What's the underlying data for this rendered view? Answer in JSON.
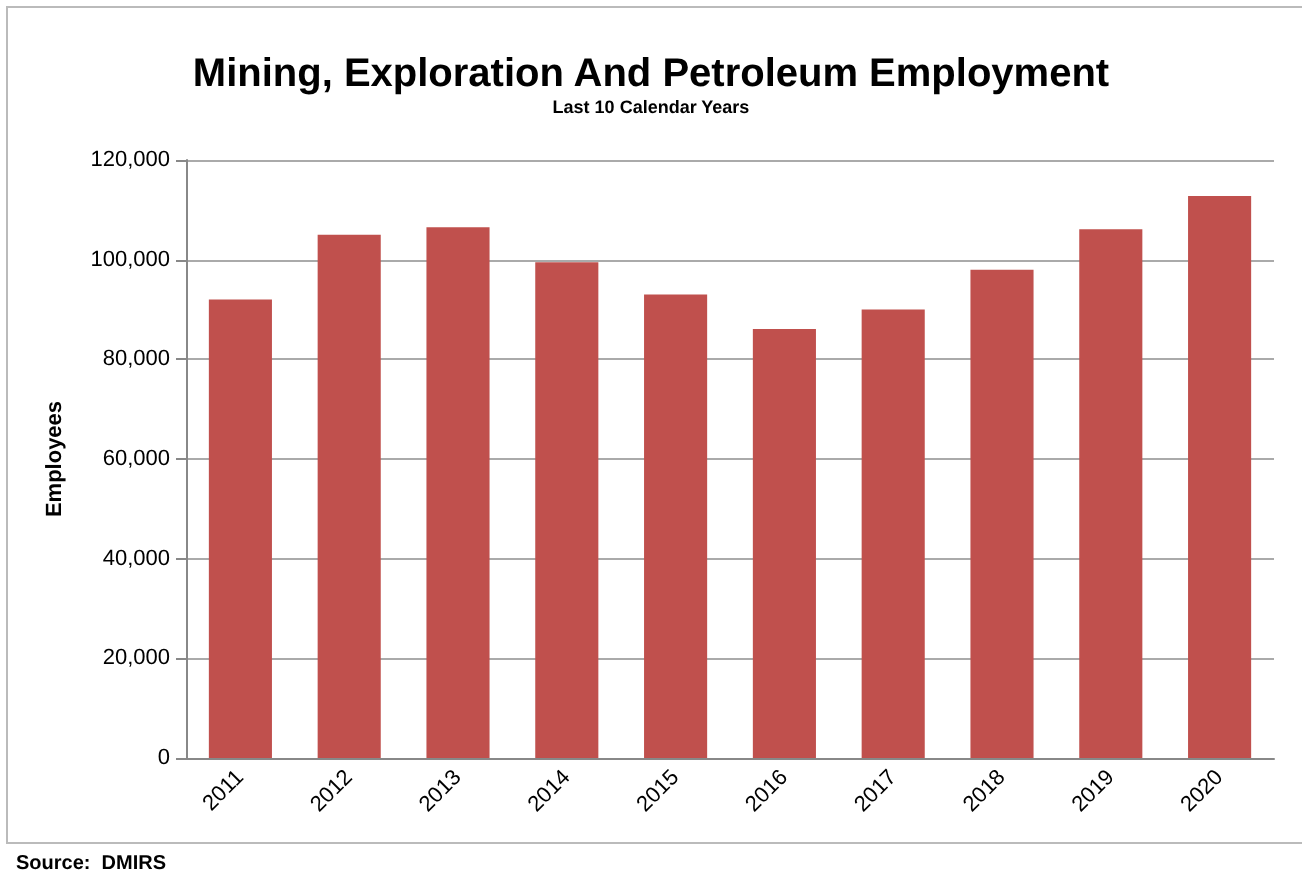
{
  "chart_data": {
    "type": "bar",
    "title": "Mining, Exploration And Petroleum Employment",
    "subtitle": "Last 10 Calendar Years",
    "ylabel": "Employees",
    "categories": [
      "2011",
      "2012",
      "2013",
      "2014",
      "2015",
      "2016",
      "2017",
      "2018",
      "2019",
      "2020"
    ],
    "values": [
      92000,
      105000,
      106500,
      99500,
      93000,
      86100,
      90000,
      98000,
      106100,
      112800
    ],
    "color": "#c0504d",
    "ylim": [
      0,
      120000
    ],
    "yticks": [
      0,
      {
        "value": 20000,
        "label": "20,000"
      },
      {
        "value": 40000,
        "label": "40,000"
      },
      {
        "value": 60000,
        "label": "60,000"
      },
      {
        "value": 80000,
        "label": "80,000"
      },
      {
        "value": 100000,
        "label": "100,000"
      },
      {
        "value": 120000,
        "label": "120,000"
      }
    ],
    "grid": "y",
    "annotations": [
      "Source:  DMIRS"
    ]
  }
}
